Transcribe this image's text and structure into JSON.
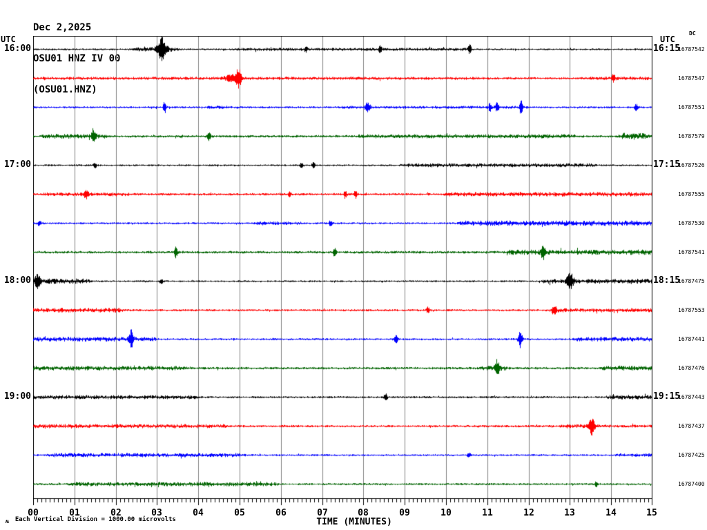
{
  "title": {
    "line1": "Dec 2,2025",
    "line2": "OSU01 HNZ IV 00",
    "line3": "(OSU01.HNZ)"
  },
  "axis_headers": {
    "left_utc": "UTC",
    "right_utc": "UTC",
    "right_dc": "DC"
  },
  "footer": {
    "scale_glyph": "ʍ",
    "scale_note": "Each Vertical Division = 1000.00 microvolts",
    "xlabel": "TIME (MINUTES)"
  },
  "chart_data": {
    "type": "line",
    "subtype": "helicorder-seismogram",
    "station_title": "OSU01 HNZ IV 00",
    "channel": "(OSU01.HNZ)",
    "date": "Dec 2,2025",
    "xlabel": "TIME (MINUTES)",
    "x_range_minutes": [
      0,
      15
    ],
    "x_tick_labels": [
      "00",
      "01",
      "02",
      "03",
      "04",
      "05",
      "06",
      "07",
      "08",
      "09",
      "10",
      "11",
      "12",
      "13",
      "14",
      "15"
    ],
    "minor_tick_step_minutes": 0.1,
    "grid": true,
    "minutes_per_row": 15,
    "vertical_division_microvolts": 1000.0,
    "colors": {
      "black": "#000000",
      "red": "#ff0000",
      "blue": "#0000ff",
      "green": "#006400",
      "grid": "#808080",
      "border": "#000000"
    },
    "hour_rows": [
      {
        "row": 0,
        "left": "16:00",
        "right": "16:15"
      },
      {
        "row": 4,
        "left": "17:00",
        "right": "17:15"
      },
      {
        "row": 8,
        "left": "18:00",
        "right": "18:15"
      },
      {
        "row": 12,
        "left": "19:00",
        "right": "19:15"
      }
    ],
    "traces": [
      {
        "color": "black",
        "dc": "16787542",
        "base": 1.3,
        "segments": [
          {
            "a": 2.5,
            "b": 3.4,
            "amp": 3.0
          },
          {
            "a": 4.9,
            "b": 10.5,
            "amp": 2.3
          }
        ],
        "spikes": [
          {
            "m": 3.11,
            "amp": 15,
            "w": 0.05
          },
          {
            "m": 3.11,
            "amp": 6,
            "w": 0.15
          },
          {
            "m": 8.4,
            "amp": 4,
            "w": 0.04
          },
          {
            "m": 10.57,
            "amp": 6,
            "w": 0.04
          },
          {
            "m": 6.6,
            "amp": 3,
            "w": 0.04
          }
        ]
      },
      {
        "color": "red",
        "dc": "16787547",
        "base": 1.8,
        "segments": [
          {
            "a": 0,
            "b": 11,
            "amp": 2.3
          },
          {
            "a": 13.4,
            "b": 15,
            "amp": 2.6
          }
        ],
        "spikes": [
          {
            "m": 4.97,
            "amp": 13,
            "w": 0.06
          },
          {
            "m": 4.8,
            "amp": 4,
            "w": 0.15
          },
          {
            "m": 14.05,
            "amp": 4,
            "w": 0.05
          }
        ]
      },
      {
        "color": "blue",
        "dc": "16787551",
        "base": 1.5,
        "segments": [
          {
            "a": 4.3,
            "b": 4.7,
            "amp": 2.6
          },
          {
            "a": 7.5,
            "b": 12,
            "amp": 2.1
          }
        ],
        "spikes": [
          {
            "m": 3.18,
            "amp": 8,
            "w": 0.04
          },
          {
            "m": 8.1,
            "amp": 6,
            "w": 0.06
          },
          {
            "m": 11.06,
            "amp": 5,
            "w": 0.04
          },
          {
            "m": 11.23,
            "amp": 6,
            "w": 0.04
          },
          {
            "m": 11.81,
            "amp": 11,
            "w": 0.03
          },
          {
            "m": 14.6,
            "amp": 4,
            "w": 0.05
          }
        ]
      },
      {
        "color": "green",
        "dc": "16787579",
        "base": 1.8,
        "segments": [
          {
            "a": 0.3,
            "b": 1.7,
            "amp": 3.5
          },
          {
            "a": 7.9,
            "b": 13.1,
            "amp": 3.0
          },
          {
            "a": 14.3,
            "b": 14.75,
            "amp": 5.0
          }
        ],
        "spikes": [
          {
            "m": 1.45,
            "amp": 9,
            "w": 0.04
          },
          {
            "m": 4.25,
            "amp": 5,
            "w": 0.05
          }
        ]
      },
      {
        "color": "black",
        "dc": "16787526",
        "base": 1.3,
        "segments": [
          {
            "a": 9.0,
            "b": 13.5,
            "amp": 2.9
          }
        ],
        "spikes": [
          {
            "m": 6.5,
            "amp": 4,
            "w": 0.04
          },
          {
            "m": 6.78,
            "amp": 4,
            "w": 0.04
          },
          {
            "m": 1.5,
            "amp": 3,
            "w": 0.05
          }
        ]
      },
      {
        "color": "red",
        "dc": "16787555",
        "base": 1.8,
        "segments": [
          {
            "a": 0.3,
            "b": 2.4,
            "amp": 2.7
          },
          {
            "a": 10.05,
            "b": 15,
            "amp": 3.3
          }
        ],
        "spikes": [
          {
            "m": 1.28,
            "amp": 5,
            "w": 0.06
          },
          {
            "m": 7.55,
            "amp": 5,
            "w": 0.04
          },
          {
            "m": 7.8,
            "amp": 5,
            "w": 0.04
          },
          {
            "m": 6.2,
            "amp": 3,
            "w": 0.04
          }
        ]
      },
      {
        "color": "blue",
        "dc": "16787530",
        "base": 1.4,
        "segments": [
          {
            "a": 5.4,
            "b": 6.4,
            "amp": 2.5
          },
          {
            "a": 10.4,
            "b": 15,
            "amp": 3.9
          }
        ],
        "spikes": [
          {
            "m": 7.2,
            "amp": 4,
            "w": 0.04
          },
          {
            "m": 0.15,
            "amp": 3,
            "w": 0.06
          }
        ]
      },
      {
        "color": "green",
        "dc": "16787541",
        "base": 1.9,
        "segments": [
          {
            "a": 11.55,
            "b": 15,
            "amp": 3.9
          }
        ],
        "spikes": [
          {
            "m": 3.45,
            "amp": 7,
            "w": 0.04
          },
          {
            "m": 7.3,
            "amp": 6,
            "w": 0.04
          },
          {
            "m": 12.35,
            "amp": 9,
            "w": 0.05
          }
        ]
      },
      {
        "color": "black",
        "dc": "16787475",
        "base": 1.3,
        "segments": [
          {
            "a": 0,
            "b": 1.25,
            "amp": 3.9
          },
          {
            "a": 12.4,
            "b": 15,
            "amp": 3.4
          }
        ],
        "spikes": [
          {
            "m": 0.1,
            "amp": 8,
            "w": 0.06
          },
          {
            "m": 3.1,
            "amp": 3,
            "w": 0.05
          },
          {
            "m": 13.0,
            "amp": 11,
            "w": 0.07
          }
        ]
      },
      {
        "color": "red",
        "dc": "16787553",
        "base": 1.6,
        "segments": [
          {
            "a": 0,
            "b": 2.1,
            "amp": 3.4
          },
          {
            "a": 12.57,
            "b": 15,
            "amp": 2.9
          }
        ],
        "spikes": [
          {
            "m": 9.56,
            "amp": 4,
            "w": 0.04
          },
          {
            "m": 12.62,
            "amp": 7,
            "w": 0.05
          }
        ]
      },
      {
        "color": "blue",
        "dc": "16787441",
        "base": 1.5,
        "segments": [
          {
            "a": 0,
            "b": 2.9,
            "amp": 3.4
          },
          {
            "a": 13.16,
            "b": 15,
            "amp": 3.3
          }
        ],
        "spikes": [
          {
            "m": 2.37,
            "amp": 12,
            "w": 0.05
          },
          {
            "m": 8.78,
            "amp": 5,
            "w": 0.05
          },
          {
            "m": 11.79,
            "amp": 12,
            "w": 0.05
          }
        ]
      },
      {
        "color": "green",
        "dc": "16787476",
        "base": 1.8,
        "segments": [
          {
            "a": 0,
            "b": 3.6,
            "amp": 3.3
          },
          {
            "a": 10.9,
            "b": 11.4,
            "amp": 3.5
          },
          {
            "a": 13.79,
            "b": 15,
            "amp": 3.5
          }
        ],
        "spikes": [
          {
            "m": 11.23,
            "amp": 10,
            "w": 0.05
          }
        ]
      },
      {
        "color": "black",
        "dc": "16787443",
        "base": 1.5,
        "segments": [
          {
            "a": 0,
            "b": 3.95,
            "amp": 3.0
          },
          {
            "a": 13.98,
            "b": 15,
            "amp": 3.3
          }
        ],
        "spikes": [
          {
            "m": 8.53,
            "amp": 5,
            "w": 0.04
          }
        ]
      },
      {
        "color": "red",
        "dc": "16787437",
        "base": 1.7,
        "segments": [
          {
            "a": 0,
            "b": 4.6,
            "amp": 3.0
          },
          {
            "a": 12.85,
            "b": 13.65,
            "amp": 3.2
          },
          {
            "a": 13.65,
            "b": 15,
            "amp": 2.2
          }
        ],
        "spikes": [
          {
            "m": 13.52,
            "amp": 11,
            "w": 0.06
          }
        ]
      },
      {
        "color": "blue",
        "dc": "16787425",
        "base": 1.4,
        "segments": [
          {
            "a": 0.45,
            "b": 5.05,
            "amp": 3.1
          },
          {
            "a": 14.2,
            "b": 15,
            "amp": 2.5
          }
        ],
        "spikes": [
          {
            "m": 10.54,
            "amp": 3,
            "w": 0.05
          }
        ]
      },
      {
        "color": "green",
        "dc": "16787400",
        "base": 1.5,
        "segments": [
          {
            "a": 0.95,
            "b": 5.85,
            "amp": 3.1
          }
        ],
        "spikes": [
          {
            "m": 13.63,
            "amp": 4,
            "w": 0.04
          }
        ]
      }
    ]
  }
}
